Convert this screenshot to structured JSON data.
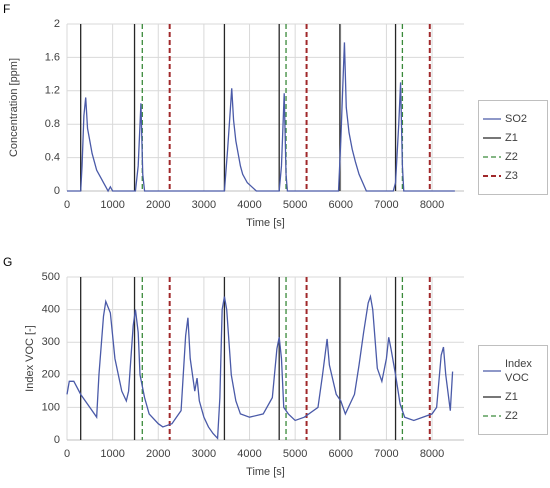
{
  "chart_data": [
    {
      "type": "line",
      "label": "F",
      "xlabel": "Time [s]",
      "ylabel": "Concentration [ppm]",
      "xlim": [
        0,
        8700
      ],
      "xticks": [
        0,
        1000,
        2000,
        3000,
        4000,
        5000,
        6000,
        7000,
        8000
      ],
      "ylim": [
        0,
        2
      ],
      "yticks": [
        0,
        0.4,
        0.8,
        1.2,
        1.6,
        2
      ],
      "grid": true,
      "legend": "right",
      "series": [
        {
          "name": "SO2",
          "color": "#4a5aa8",
          "style": "solid",
          "x": [
            0,
            300,
            330,
            370,
            410,
            450,
            500,
            550,
            600,
            650,
            700,
            750,
            800,
            850,
            900,
            950,
            1000,
            1500,
            1560,
            1620,
            1660,
            1700,
            3450,
            3520,
            3570,
            3610,
            3650,
            3700,
            3750,
            3800,
            3850,
            3950,
            4050,
            4150,
            4650,
            4700,
            4760,
            4800,
            4830,
            5950,
            6000,
            6040,
            6080,
            6120,
            6180,
            6250,
            6320,
            6400,
            6480,
            6560,
            7150,
            7200,
            7270,
            7310,
            7350,
            7380,
            8500
          ],
          "values": [
            0,
            0,
            0.3,
            0.9,
            1.12,
            0.75,
            0.6,
            0.45,
            0.35,
            0.25,
            0.2,
            0.15,
            0.1,
            0.05,
            0,
            0.05,
            0,
            0,
            0.3,
            1.05,
            0.2,
            0,
            0,
            0.5,
            0.9,
            1.23,
            0.85,
            0.6,
            0.45,
            0.3,
            0.2,
            0.1,
            0.05,
            0,
            0,
            0.3,
            1.17,
            0.2,
            0,
            0,
            0.6,
            1.2,
            1.78,
            1.0,
            0.7,
            0.5,
            0.35,
            0.2,
            0.1,
            0,
            0,
            0.1,
            0.8,
            1.3,
            0.3,
            0,
            0
          ]
        },
        {
          "name": "Z1",
          "color": "#262626",
          "style": "solid",
          "events": [
            300,
            1480,
            3450,
            4650,
            5980,
            7200
          ]
        },
        {
          "name": "Z2",
          "color": "#3a8a3a",
          "style": "dashed",
          "events": [
            1650,
            4800,
            7350
          ]
        },
        {
          "name": "Z3",
          "color": "#a0282a",
          "style": "dashed",
          "events": [
            2250,
            5250,
            7950
          ]
        }
      ]
    },
    {
      "type": "line",
      "label": "G",
      "xlabel": "Time [s]",
      "ylabel": "Index VOC [-]",
      "xlim": [
        0,
        8700
      ],
      "xticks": [
        0,
        1000,
        2000,
        3000,
        4000,
        5000,
        6000,
        7000,
        8000
      ],
      "ylim": [
        0,
        500
      ],
      "yticks": [
        0,
        100,
        200,
        300,
        400,
        500
      ],
      "grid": true,
      "legend": "right",
      "series": [
        {
          "name": "Index VOC",
          "color": "#4a5aa8",
          "style": "solid",
          "x": [
            0,
            50,
            150,
            300,
            500,
            650,
            700,
            800,
            850,
            950,
            1050,
            1200,
            1300,
            1350,
            1450,
            1500,
            1560,
            1600,
            1700,
            1800,
            2000,
            2100,
            2300,
            2400,
            2500,
            2600,
            2650,
            2700,
            2800,
            2850,
            2900,
            3000,
            3100,
            3200,
            3300,
            3350,
            3400,
            3450,
            3500,
            3600,
            3700,
            3800,
            4000,
            4300,
            4500,
            4600,
            4650,
            4700,
            4750,
            4850,
            5000,
            5200,
            5500,
            5600,
            5700,
            5750,
            5900,
            6000,
            6100,
            6300,
            6400,
            6500,
            6600,
            6650,
            6700,
            6800,
            6900,
            7000,
            7050,
            7100,
            7200,
            7300,
            7400,
            7600,
            8000,
            8100,
            8200,
            8250,
            8300,
            8400,
            8450
          ],
          "values": [
            140,
            180,
            180,
            140,
            100,
            70,
            200,
            380,
            425,
            390,
            250,
            150,
            120,
            150,
            350,
            400,
            330,
            200,
            130,
            80,
            50,
            40,
            50,
            70,
            90,
            320,
            375,
            250,
            150,
            190,
            120,
            70,
            40,
            20,
            5,
            130,
            400,
            440,
            400,
            200,
            120,
            80,
            70,
            80,
            130,
            280,
            315,
            250,
            100,
            80,
            60,
            70,
            100,
            200,
            310,
            230,
            140,
            120,
            80,
            140,
            230,
            330,
            420,
            440,
            400,
            220,
            180,
            250,
            315,
            280,
            200,
            110,
            70,
            60,
            80,
            100,
            260,
            285,
            200,
            90,
            210
          ]
        },
        {
          "name": "Z1",
          "color": "#262626",
          "style": "solid",
          "events": [
            300,
            1480,
            3450,
            4650,
            5980,
            7200
          ]
        },
        {
          "name": "Z2",
          "color": "#3a8a3a",
          "style": "dashed",
          "events": [
            1650,
            4800,
            7350
          ]
        },
        {
          "color": "#a0282a",
          "style": "dashed",
          "events": [
            2250,
            5250,
            7950
          ]
        }
      ]
    }
  ]
}
